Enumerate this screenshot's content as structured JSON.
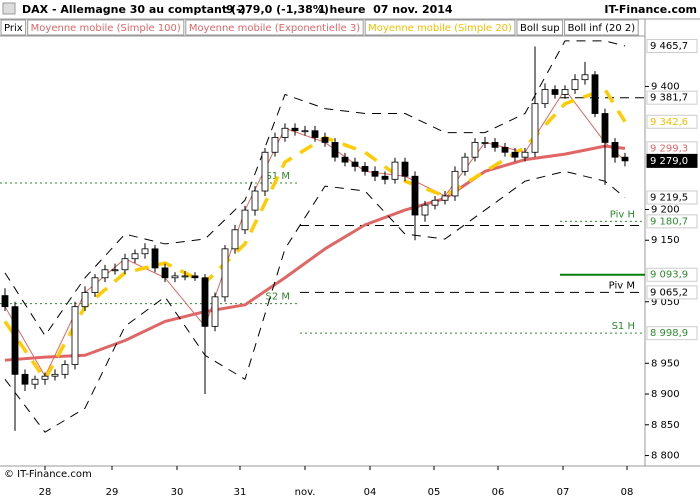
{
  "chart_data": {
    "type": "candlestick",
    "header": {
      "title": "DAX - Allemagne 30 au comptant (-)",
      "quote": "9 279,0 (-1,38%)",
      "period": "1 heure  07 nov. 2014",
      "brand": "IT-Finance.com"
    },
    "footer": "© IT-Finance.com",
    "legend": [
      {
        "text": "Prix",
        "color": "#000000"
      },
      {
        "text": "Moyenne mobile (Simple 100)",
        "color": "#e06666"
      },
      {
        "text": "Moyenne mobile (Exponentielle 3)",
        "color": "#e06666"
      },
      {
        "text": "Moyenne mobile (Simple 20)",
        "color": "#f0c000"
      },
      {
        "text": "Boll sup",
        "color": "#000000"
      },
      {
        "text": "Boll inf (20 2)",
        "color": "#000000"
      }
    ],
    "up_color": "#ffffff",
    "down_color": "#000000",
    "xlim": [
      -0.5,
      64
    ],
    "ylim": [
      8783,
      9482
    ],
    "xticks": [
      {
        "value": 4,
        "label": "28"
      },
      {
        "value": 10.7,
        "label": "29"
      },
      {
        "value": 17.2,
        "label": "30"
      },
      {
        "value": 23.5,
        "label": "31"
      },
      {
        "value": 30,
        "label": "nov."
      },
      {
        "value": 36.5,
        "label": "04"
      },
      {
        "value": 42.9,
        "label": "05"
      },
      {
        "value": 49.3,
        "label": "06"
      },
      {
        "value": 55.8,
        "label": "07"
      },
      {
        "value": 62.2,
        "label": "08"
      }
    ],
    "yticks": [
      {
        "value": 8800,
        "label": "8 800"
      },
      {
        "value": 8850,
        "label": "8 850"
      },
      {
        "value": 8900,
        "label": "8 900"
      },
      {
        "value": 8950,
        "label": "8 950"
      },
      {
        "value": 9050,
        "label": "9 050"
      },
      {
        "value": 9150,
        "label": "9 150"
      },
      {
        "value": 9200,
        "label": "9 200"
      },
      {
        "value": 9400,
        "label": "9 400"
      }
    ],
    "open": [
      9060,
      9042,
      8932,
      8916,
      8924,
      8929,
      8932,
      8948,
      9042,
      9065,
      9089,
      9102,
      9102,
      9120,
      9128,
      9136,
      9105,
      9089,
      9092,
      9092,
      9089,
      9010,
      9058,
      9136,
      9167,
      9199,
      9230,
      9293,
      9317,
      9332,
      9328,
      9328,
      9317,
      9309,
      9285,
      9277,
      9270,
      9262,
      9254,
      9249,
      9277,
      9254,
      9191,
      9207,
      9215,
      9222,
      9262,
      9285,
      9309,
      9309,
      9301,
      9293,
      9285,
      9293,
      9372,
      9395,
      9387,
      9395,
      9411,
      9419,
      9356,
      9309,
      9285
    ],
    "high": [
      9072,
      9050,
      8940,
      8930,
      8935,
      8940,
      8955,
      9050,
      9075,
      9095,
      9110,
      9112,
      9128,
      9135,
      9145,
      9142,
      9112,
      9098,
      9100,
      9098,
      9095,
      9065,
      9142,
      9175,
      9206,
      9238,
      9300,
      9325,
      9340,
      9340,
      9336,
      9336,
      9325,
      9316,
      9292,
      9284,
      9277,
      9270,
      9262,
      9284,
      9284,
      9262,
      9214,
      9222,
      9230,
      9270,
      9292,
      9316,
      9318,
      9316,
      9308,
      9300,
      9300,
      9465,
      9405,
      9402,
      9402,
      9420,
      9440,
      9425,
      9364,
      9316,
      9292
    ],
    "low": [
      9035,
      8840,
      8905,
      8908,
      8915,
      8922,
      8925,
      8940,
      9035,
      9058,
      9082,
      9094,
      9095,
      9113,
      9120,
      9098,
      9082,
      9082,
      9085,
      9084,
      8900,
      9002,
      9050,
      9128,
      9160,
      9190,
      9222,
      9286,
      9310,
      9320,
      9320,
      9310,
      9302,
      9278,
      9270,
      9262,
      9255,
      9246,
      9241,
      9242,
      9246,
      9150,
      9180,
      9200,
      9208,
      9214,
      9255,
      9278,
      9300,
      9294,
      9286,
      9278,
      9278,
      9285,
      9365,
      9380,
      9380,
      9388,
      9403,
      9350,
      9240,
      9276,
      9270
    ],
    "close": [
      9042,
      8932,
      8916,
      8924,
      8929,
      8932,
      8948,
      9042,
      9065,
      9089,
      9102,
      9102,
      9120,
      9128,
      9136,
      9105,
      9089,
      9092,
      9092,
      9089,
      9010,
      9058,
      9136,
      9167,
      9199,
      9230,
      9293,
      9317,
      9332,
      9328,
      9328,
      9317,
      9309,
      9285,
      9277,
      9270,
      9262,
      9254,
      9249,
      9277,
      9254,
      9191,
      9207,
      9215,
      9222,
      9262,
      9285,
      9309,
      9309,
      9301,
      9293,
      9285,
      9293,
      9372,
      9395,
      9387,
      9395,
      9411,
      9419,
      9356,
      9309,
      9285,
      9279
    ],
    "series": [
      {
        "name": "Moyenne mobile (Simple 100)",
        "color": "#e06666",
        "width": 3,
        "style": "solid",
        "x": [
          0,
          4,
          8,
          12,
          16,
          20,
          24,
          28,
          32,
          36,
          40,
          44,
          48,
          52,
          56,
          60,
          62
        ],
        "values": [
          8955,
          8960,
          8963,
          8987,
          9018,
          9034,
          9045,
          9089,
          9136,
          9175,
          9199,
          9218,
          9262,
          9281,
          9290,
          9303,
          9299.3
        ]
      },
      {
        "name": "Moyenne mobile (Exponentielle 3)",
        "color": "#e06666",
        "width": 1,
        "style": "solid",
        "x": [
          0,
          4,
          8,
          12,
          16,
          20,
          24,
          28,
          32,
          36,
          40,
          44,
          48,
          52,
          56,
          60,
          62
        ],
        "values": [
          9042,
          8929,
          9065,
          9120,
          9089,
          9010,
          9199,
          9332,
          9309,
          9262,
          9254,
          9222,
          9309,
          9293,
          9395,
          9309,
          9279
        ]
      },
      {
        "name": "Moyenne mobile (Simple 20)",
        "color": "#ffcc00",
        "width": 3.5,
        "style": "dashed",
        "x": [
          0,
          4,
          8,
          12,
          16,
          20,
          24,
          28,
          32,
          36,
          40,
          44,
          48,
          52,
          56,
          60,
          62
        ],
        "values": [
          9018,
          8924,
          9042,
          9097,
          9113,
          9081,
          9144,
          9277,
          9317,
          9293,
          9246,
          9222,
          9262,
          9301,
          9372,
          9395,
          9342.6
        ]
      },
      {
        "name": "Boll sup",
        "color": "#000000",
        "width": 1,
        "style": "dashed",
        "x": [
          0,
          4,
          8,
          12,
          16,
          20,
          24,
          28,
          32,
          36,
          40,
          44,
          48,
          52,
          56,
          60,
          62
        ],
        "values": [
          9097,
          8995,
          9089,
          9160,
          9144,
          9152,
          9215,
          9387,
          9364,
          9356,
          9356,
          9325,
          9325,
          9356,
          9474,
          9474,
          9465.7
        ]
      },
      {
        "name": "Boll inf (20 2)",
        "color": "#000000",
        "width": 1,
        "style": "dashed",
        "x": [
          0,
          4,
          8,
          12,
          16,
          20,
          24,
          28,
          32,
          36,
          40,
          44,
          48,
          52,
          56,
          60,
          62
        ],
        "values": [
          8924,
          8838,
          8877,
          9010,
          9058,
          8963,
          8924,
          9136,
          9238,
          9230,
          9160,
          9152,
          9199,
          9246,
          9262,
          9246,
          9219.5
        ]
      }
    ],
    "levels": [
      {
        "name": "S1 M",
        "value": 9243,
        "color": "#2e8b2e",
        "style": "dotted",
        "from": -0.5,
        "to": 29.5
      },
      {
        "name": "S2 M",
        "value": 9047,
        "color": "#2e8b2e",
        "style": "dotted",
        "from": -0.5,
        "to": 29.5
      },
      {
        "name": "Piv H",
        "value": 9180.7,
        "color": "#2e8b2e",
        "style": "dotted",
        "from": 55.5,
        "to": 64
      },
      {
        "value": 9174,
        "color": "#000000",
        "style": "dashed",
        "from": 29.5,
        "to": 64
      },
      {
        "name": "Piv M",
        "value": 9065.2,
        "color": "#000000",
        "style": "dashed",
        "from": 29.5,
        "to": 64
      },
      {
        "value": 9381.7,
        "color": "#000000",
        "style": "dashed",
        "from": 55.5,
        "to": 64
      },
      {
        "value": 9093.9,
        "color": "#008000",
        "style": "solid",
        "from": 55.5,
        "to": 64
      },
      {
        "name": "S1 H",
        "value": 8998.9,
        "color": "#2e8b2e",
        "style": "dotted",
        "from": 29.5,
        "to": 64
      }
    ],
    "price_labels": [
      {
        "value": 9465.7,
        "label": "9 465,7",
        "color": "#000000",
        "bg": "#ffffff"
      },
      {
        "value": 9381.7,
        "label": "9 381,7",
        "color": "#000000",
        "bg": "#ffffff"
      },
      {
        "value": 9342.6,
        "label": "9 342,6",
        "color": "#f0c000",
        "bg": "#ffffff"
      },
      {
        "value": 9299.3,
        "label": "9 299,3",
        "color": "#e06666",
        "bg": "#ffffff"
      },
      {
        "value": 9279.0,
        "label": "9 279,0",
        "color": "#ffffff",
        "bg": "#000000"
      },
      {
        "value": 9219.5,
        "label": "9 219,5",
        "color": "#000000",
        "bg": "#ffffff"
      },
      {
        "value": 9180.7,
        "label": "9 180,7",
        "color": "#2e8b2e",
        "bg": "#ffffff"
      },
      {
        "value": 9093.9,
        "label": "9 093,9",
        "color": "#2e8b2e",
        "bg": "#ffffff"
      },
      {
        "value": 9065.2,
        "label": "9 065,2",
        "color": "#000000",
        "bg": "#ffffff"
      },
      {
        "value": 8998.9,
        "label": "8 998,9",
        "color": "#2e8b2e",
        "bg": "#ffffff"
      }
    ]
  }
}
